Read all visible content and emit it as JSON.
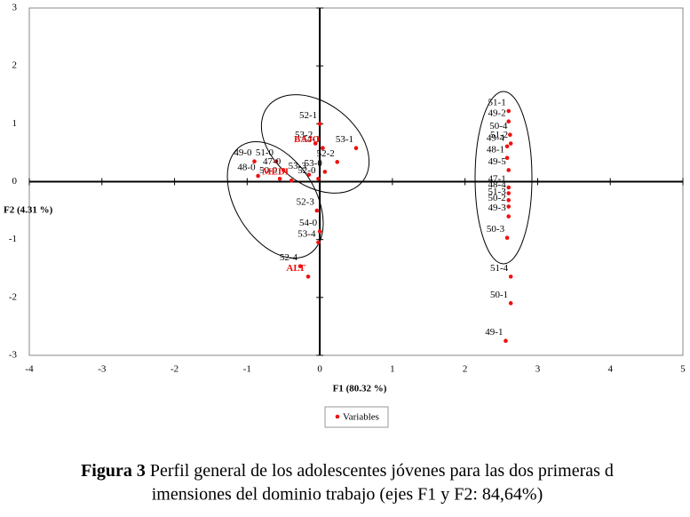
{
  "chart_data": {
    "type": "scatter",
    "x_label": "F1 (80.32 %)",
    "y_label": "F2 (4.31 %)",
    "xlim": [
      -4,
      5
    ],
    "ylim": [
      -3,
      3
    ],
    "xticks": [
      -4,
      -3,
      -2,
      -1,
      0,
      1,
      2,
      3,
      4,
      5
    ],
    "yticks": [
      -3,
      -2,
      -1,
      0,
      1,
      2,
      3
    ],
    "series": [
      {
        "name": "Variables",
        "color": "#ee1111",
        "labels": [
          "51-1",
          "49-2",
          "50-4",
          "49-4",
          "51-2",
          "48-1",
          "49-5",
          "47-1",
          "48-4",
          "51-3",
          "50-2",
          "49-3",
          "50-3",
          "51-4",
          "50-1",
          "49-1",
          "52-1",
          "53-2",
          "54-1",
          "53-1",
          "52-2",
          "53-0",
          "49-0",
          "51-0",
          "47-0",
          "48-0",
          "50-0",
          "53-3",
          "52-0",
          "52-3",
          "54-0",
          "53-4",
          "52-4"
        ],
        "x": [
          2.6,
          2.6,
          2.62,
          2.58,
          2.63,
          2.58,
          2.6,
          2.6,
          2.6,
          2.6,
          2.6,
          2.6,
          2.58,
          2.63,
          2.63,
          2.56,
          0,
          -0.06,
          0.04,
          0.5,
          0.24,
          0.07,
          -0.9,
          -0.6,
          -0.5,
          -0.85,
          -0.55,
          -0.15,
          -0.02,
          -0.04,
          0,
          -0.02,
          -0.27
        ],
        "y": [
          1.22,
          1.04,
          0.81,
          0.61,
          0.66,
          0.41,
          0.2,
          -0.1,
          -0.2,
          -0.32,
          -0.43,
          -0.6,
          -0.97,
          -1.64,
          -2.1,
          -2.75,
          1.0,
          0.66,
          0.58,
          0.58,
          0.34,
          0.17,
          0.35,
          0.35,
          0.2,
          0.1,
          0.05,
          0.12,
          0.05,
          -0.5,
          -0.86,
          -1.05,
          -1.46
        ]
      },
      {
        "color": "#ee1111",
        "labels": [
          "BAJO",
          "MEDI",
          "ALT"
        ],
        "x": [
          0.04,
          -0.39,
          -0.16
        ],
        "y": [
          0.58,
          0.02,
          -1.64
        ]
      }
    ],
    "legend": "bottom",
    "caption_label": "Figura 3",
    "caption": [
      "Perfil general de los adolescentes jóvenes para las dos primeras d",
      "imensiones del dominio trabajo (ejes F1 y F2: 84,64%)"
    ]
  }
}
